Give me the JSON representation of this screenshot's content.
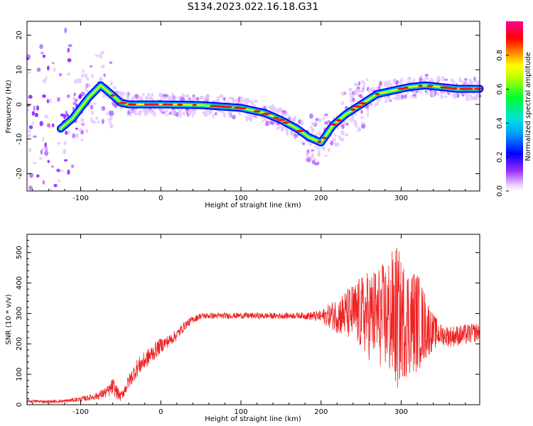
{
  "title": "S134.2023.022.16.18.G31",
  "colors": {
    "snr_line": "#ee2222",
    "ridge_colormap": [
      "#ffffff",
      "#e0b8ff",
      "#7a00ff",
      "#0000ff",
      "#00dcff",
      "#00ff40",
      "#ffff00",
      "#ff0000",
      "#ff00a0"
    ]
  },
  "chart_data": [
    {
      "type": "heatmap",
      "title": "S134.2023.022.16.18.G31",
      "xlabel": "Height of straight line (km)",
      "ylabel": "Frequency (Hz)",
      "xlim": [
        -167,
        398
      ],
      "ylim": [
        -25,
        24
      ],
      "xticks": [
        -100,
        0,
        100,
        200,
        300
      ],
      "yticks": [
        -20,
        -10,
        0,
        10,
        20
      ],
      "colorbar": {
        "label": "Normalized spectral amplitude",
        "range": [
          0.0,
          1.0
        ],
        "ticks": [
          0.0,
          0.2,
          0.4,
          0.6,
          0.8
        ]
      },
      "ridge": {
        "description_x": [
          -167,
          -130,
          -110,
          -90,
          -75,
          -62,
          -50,
          -40,
          0,
          50,
          100,
          130,
          150,
          170,
          185,
          200,
          215,
          230,
          250,
          270,
          290,
          300,
          310,
          330,
          350,
          370,
          398
        ],
        "frequency_hz": [
          -10,
          -8,
          -4,
          2,
          5.5,
          3,
          0.5,
          0,
          0,
          -0.2,
          -1,
          -2.5,
          -4.5,
          -7,
          -9.5,
          -11,
          -6,
          -3,
          0,
          3,
          4,
          4.5,
          5,
          5.5,
          5,
          4.5,
          4.5
        ]
      }
    },
    {
      "type": "line",
      "xlabel": "Height of straight line (km)",
      "ylabel": "SNR (10 * v/v)",
      "xlim": [
        -167,
        398
      ],
      "ylim": [
        0,
        560
      ],
      "xticks": [
        -100,
        0,
        100,
        200,
        300
      ],
      "yticks": [
        0,
        100,
        200,
        300,
        400,
        500
      ],
      "series": [
        {
          "x": [
            -167,
            -140,
            -120,
            -100,
            -80,
            -65,
            -60,
            -50,
            -40,
            -30,
            -20,
            -10,
            0,
            10,
            20,
            30,
            40,
            50,
            75,
            100,
            125,
            150,
            175,
            200,
            220,
            240,
            260,
            280,
            295,
            300,
            320,
            340,
            350,
            360,
            380,
            398
          ],
          "values": [
            12,
            10,
            12,
            18,
            28,
            45,
            60,
            25,
            75,
            120,
            145,
            170,
            195,
            210,
            230,
            260,
            280,
            292,
            292,
            293,
            292,
            292,
            293,
            290,
            295,
            300,
            295,
            290,
            285,
            280,
            275,
            240,
            230,
            225,
            230,
            240
          ],
          "spread": [
            5,
            5,
            6,
            8,
            12,
            20,
            30,
            15,
            25,
            30,
            30,
            30,
            25,
            20,
            18,
            15,
            12,
            10,
            10,
            10,
            10,
            10,
            10,
            20,
            60,
            100,
            150,
            180,
            250,
            200,
            170,
            60,
            35,
            35,
            35,
            30
          ]
        }
      ]
    }
  ]
}
